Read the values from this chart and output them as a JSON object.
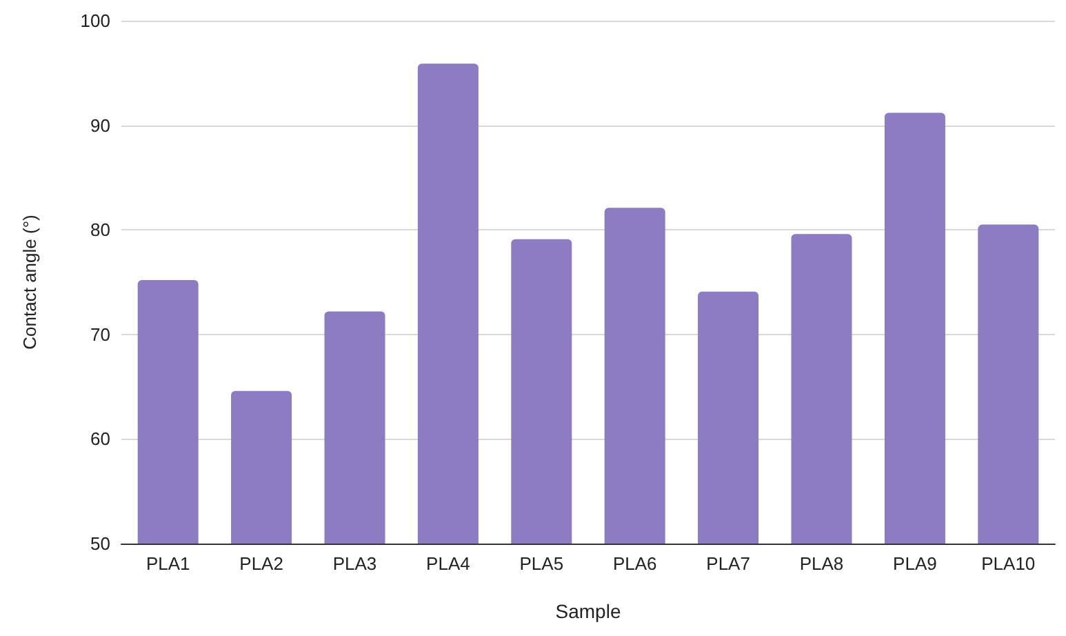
{
  "chart_data": {
    "type": "bar",
    "xlabel": "Sample",
    "ylabel": "Contact angle (°)",
    "categories": [
      "PLA1",
      "PLA2",
      "PLA3",
      "PLA4",
      "PLA5",
      "PLA6",
      "PLA7",
      "PLA8",
      "PLA9",
      "PLA10"
    ],
    "values": [
      75.2,
      64.6,
      72.2,
      95.9,
      79.1,
      82.1,
      74.1,
      79.6,
      91.2,
      80.5
    ],
    "color": "#8e7cc3",
    "ylim": [
      50,
      100
    ],
    "yticks": [
      50,
      60,
      70,
      80,
      90,
      100
    ],
    "grid": "y"
  }
}
